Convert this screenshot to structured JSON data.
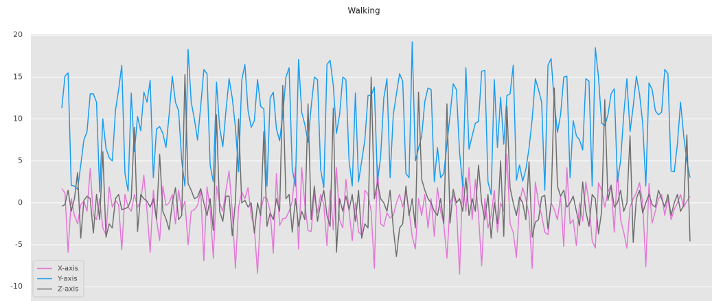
{
  "chart_data": {
    "type": "line",
    "title": "Walking",
    "ylim": [
      -11.7,
      20.1
    ],
    "yticks": [
      -10,
      -5,
      0,
      5,
      10,
      15,
      20
    ],
    "grid": true,
    "legend": "lower left",
    "series": [
      {
        "name": "X-axis",
        "color": "#e377d6",
        "values": [
          1.7,
          1.2,
          -5.9,
          0.5,
          -1.5,
          -2.5,
          -0.2,
          0.2,
          -1.0,
          4.1,
          -1.5,
          -2.0,
          0.5,
          -3.0,
          -3.8,
          1.9,
          -0.5,
          0.3,
          -0.2,
          -5.6,
          1.0,
          -0.5,
          -1.0,
          1.0,
          -0.5,
          0.2,
          3.3,
          -1.0,
          -5.9,
          1.5,
          -2.0,
          -4.5,
          2.0,
          -0.3,
          0.0,
          1.0,
          -2.5,
          1.5,
          -1.0,
          0.2,
          -5.0,
          -1.0,
          -0.8,
          -0.3,
          1.5,
          -6.9,
          1.9,
          -0.8,
          -6.6,
          2.0,
          0.0,
          -1.0,
          1.5,
          3.8,
          -1.0,
          -7.8,
          -0.5,
          1.3,
          0.5,
          1.8,
          -1.5,
          -3.0,
          -8.4,
          -1.0,
          0.7,
          0.5,
          -1.0,
          -6.0,
          3.5,
          -2.7,
          -1.9,
          -1.8,
          -1.0,
          0.2,
          4.2,
          -5.5,
          4.2,
          -0.2,
          -3.3,
          -3.4,
          1.0,
          -1.2,
          1.0,
          -0.2,
          -5.1,
          1.5,
          -3.2,
          4.2,
          -2.0,
          -3.0,
          2.8,
          -1.0,
          -4.5,
          0.0,
          -3.5,
          -3.8,
          1.5,
          1.0,
          -1.0,
          -7.8,
          4.5,
          -2.5,
          -2.8,
          -1.2,
          -1.8,
          -1.5,
          0.0,
          1.0,
          -0.5,
          1.5,
          -1.0,
          -4.0,
          -5.5,
          0.5,
          -1.5,
          1.0,
          -3.0,
          0.5,
          -4.0,
          1.8,
          -1.0,
          -2.5,
          -6.6,
          0.0,
          1.0,
          -0.5,
          -8.5,
          3.0,
          -1.0,
          4.2,
          -2.0,
          2.8,
          -1.5,
          -7.5,
          0.5,
          -3.0,
          -1.5,
          1.5,
          -3.5,
          0.0,
          -1.0,
          5.8,
          -2.5,
          -3.5,
          -6.5,
          0.0,
          1.8,
          0.5,
          -1.5,
          -7.8,
          2.5,
          0.0,
          -1.5,
          -3.5,
          -3.8,
          0.0,
          -0.8,
          -2.0,
          0.8,
          -5.2,
          4.2,
          -2.5,
          -2.0,
          -5.1,
          0.0,
          -2.2,
          2.5,
          0.0,
          -4.5,
          -5.4,
          2.4,
          1.5,
          -0.5,
          1.3,
          2.1,
          -3.5,
          4.0,
          -2.0,
          -3.5,
          -5.4,
          -0.5,
          0.5,
          1.2,
          2.4,
          0.0,
          -7.6,
          2.3,
          -2.4,
          -1.0,
          0.5,
          1.0,
          -1.5,
          0.5,
          -2.0,
          -0.8,
          0.0,
          1.0,
          -0.5,
          0.2,
          0.8
        ]
      },
      {
        "name": "Y-axis",
        "color": "#1a9cef",
        "values": [
          11.3,
          15.1,
          15.5,
          2.1,
          2.0,
          1.6,
          4.5,
          7.5,
          8.5,
          13.0,
          13.0,
          12.0,
          1.3,
          10.0,
          6.5,
          5.4,
          5.0,
          11.0,
          13.5,
          16.4,
          3.5,
          1.4,
          13.1,
          6.1,
          10.3,
          8.6,
          13.2,
          12.0,
          14.6,
          3.0,
          8.8,
          9.1,
          8.3,
          6.6,
          10.5,
          15.1,
          12.0,
          11.0,
          5.0,
          2.0,
          18.3,
          12.0,
          10.0,
          7.5,
          11.5,
          15.9,
          15.4,
          4.5,
          2.5,
          14.4,
          9.0,
          6.7,
          11.0,
          14.8,
          12.5,
          9.0,
          3.7,
          14.6,
          16.5,
          11.0,
          9.0,
          9.8,
          14.7,
          11.5,
          11.2,
          2.0,
          12.5,
          13.2,
          8.8,
          7.4,
          10.5,
          15.0,
          16.1,
          4.0,
          2.0,
          17.1,
          10.8,
          9.3,
          7.2,
          11.5,
          15.0,
          14.7,
          4.0,
          1.8,
          16.5,
          17.0,
          14.0,
          8.3,
          10.5,
          15.0,
          14.7,
          5.0,
          2.0,
          13.1,
          2.5,
          5.0,
          7.5,
          12.8,
          12.8,
          13.8,
          2.5,
          5.5,
          12.5,
          14.8,
          3.0,
          10.5,
          13.0,
          15.4,
          14.5,
          3.5,
          3.0,
          19.2,
          5.0,
          6.5,
          8.0,
          12.1,
          13.7,
          13.5,
          2.5,
          6.6,
          3.0,
          3.5,
          7.0,
          10.5,
          14.2,
          13.5,
          6.0,
          2.0,
          16.1,
          6.4,
          8.0,
          9.5,
          9.7,
          15.7,
          15.8,
          2.5,
          1.0,
          14.7,
          6.6,
          12.6,
          7.0,
          12.8,
          13.0,
          16.4,
          2.7,
          4.5,
          2.6,
          4.0,
          6.5,
          10.0,
          14.8,
          13.5,
          12.0,
          1.5,
          16.4,
          17.2,
          12.0,
          8.4,
          10.5,
          15.0,
          15.1,
          3.0,
          9.8,
          8.0,
          7.5,
          6.3,
          14.8,
          14.5,
          2.0,
          18.5,
          15.0,
          9.5,
          9.2,
          10.5,
          13.0,
          13.6,
          2.5,
          5.0,
          10.5,
          14.8,
          8.5,
          11.5,
          15.1,
          13.0,
          9.5,
          2.0,
          14.3,
          13.5,
          11.0,
          10.5,
          10.8,
          15.9,
          15.4,
          3.8,
          3.7,
          7.0,
          12.0,
          8.0,
          5.0,
          3.0
        ]
      },
      {
        "name": "Z-axis",
        "color": "#6e6e6e",
        "values": [
          -0.4,
          -0.2,
          1.5,
          -1.0,
          0.5,
          3.6,
          -4.2,
          0.3,
          0.8,
          0.5,
          -3.6,
          1.0,
          -2.0,
          6.1,
          -4.1,
          -2.5,
          -3.0,
          0.5,
          1.0,
          -0.8,
          -0.7,
          -0.5,
          0.5,
          9.0,
          -3.4,
          1.0,
          0.5,
          0.2,
          -0.5,
          0.5,
          -2.0,
          5.8,
          -1.0,
          -1.9,
          -3.2,
          0.0,
          1.8,
          -2.0,
          -1.5,
          15.3,
          2.3,
          1.5,
          0.5,
          0.7,
          1.7,
          0.0,
          -1.5,
          0.5,
          -3.3,
          10.5,
          -1.0,
          -2.2,
          0.8,
          0.8,
          -3.9,
          0.2,
          10.0,
          0.0,
          0.3,
          -0.5,
          0.0,
          -3.6,
          0.0,
          -1.5,
          8.5,
          -2.8,
          -1.2,
          -2.0,
          0.5,
          -1.0,
          14.0,
          0.5,
          1.0,
          -3.5,
          0.5,
          -2.8,
          -1.0,
          -2.0,
          11.8,
          -2.0,
          2.0,
          -2.2,
          0.0,
          1.5,
          -1.5,
          -2.8,
          11.3,
          -5.9,
          0.5,
          -1.0,
          0.8,
          -0.8,
          1.0,
          -2.2,
          1.5,
          -4.2,
          -2.5,
          -3.0,
          15.0,
          0.5,
          2.4,
          0.5,
          0.0,
          -1.0,
          1.5,
          -3.0,
          -6.4,
          -3.0,
          -2.5,
          2.0,
          -1.5,
          0.5,
          -3.0,
          13.2,
          2.8,
          1.5,
          0.5,
          0.0,
          -1.0,
          -1.5,
          0.5,
          -2.5,
          11.8,
          -2.4,
          1.6,
          0.0,
          0.5,
          -1.0,
          3.0,
          -1.5,
          0.5,
          -1.0,
          4.5,
          0.0,
          -2.0,
          1.0,
          -4.2,
          0.0,
          -2.5,
          5.0,
          -4.0,
          11.5,
          1.8,
          0.0,
          -1.5,
          0.7,
          0.0,
          -2.0,
          4.9,
          -4.1,
          -2.3,
          -2.0,
          0.7,
          0.9,
          -3.1,
          0.0,
          13.7,
          2.0,
          0.8,
          1.5,
          -0.5,
          0.0,
          0.8,
          -1.0,
          -2.7,
          2.5,
          -1.0,
          -2.8,
          1.0,
          0.5,
          -3.7,
          -1.0,
          12.3,
          0.3,
          2.1,
          -0.5,
          0.0,
          1.5,
          -1.0,
          0.0,
          8.0,
          -4.7,
          0.5,
          1.5,
          -1.2,
          0.0,
          1.0,
          -0.2,
          -0.5,
          1.5,
          0.5,
          -0.5,
          1.0,
          -1.5,
          0.0,
          1.0,
          -1.0,
          -0.3,
          8.1,
          -4.6
        ]
      }
    ]
  }
}
